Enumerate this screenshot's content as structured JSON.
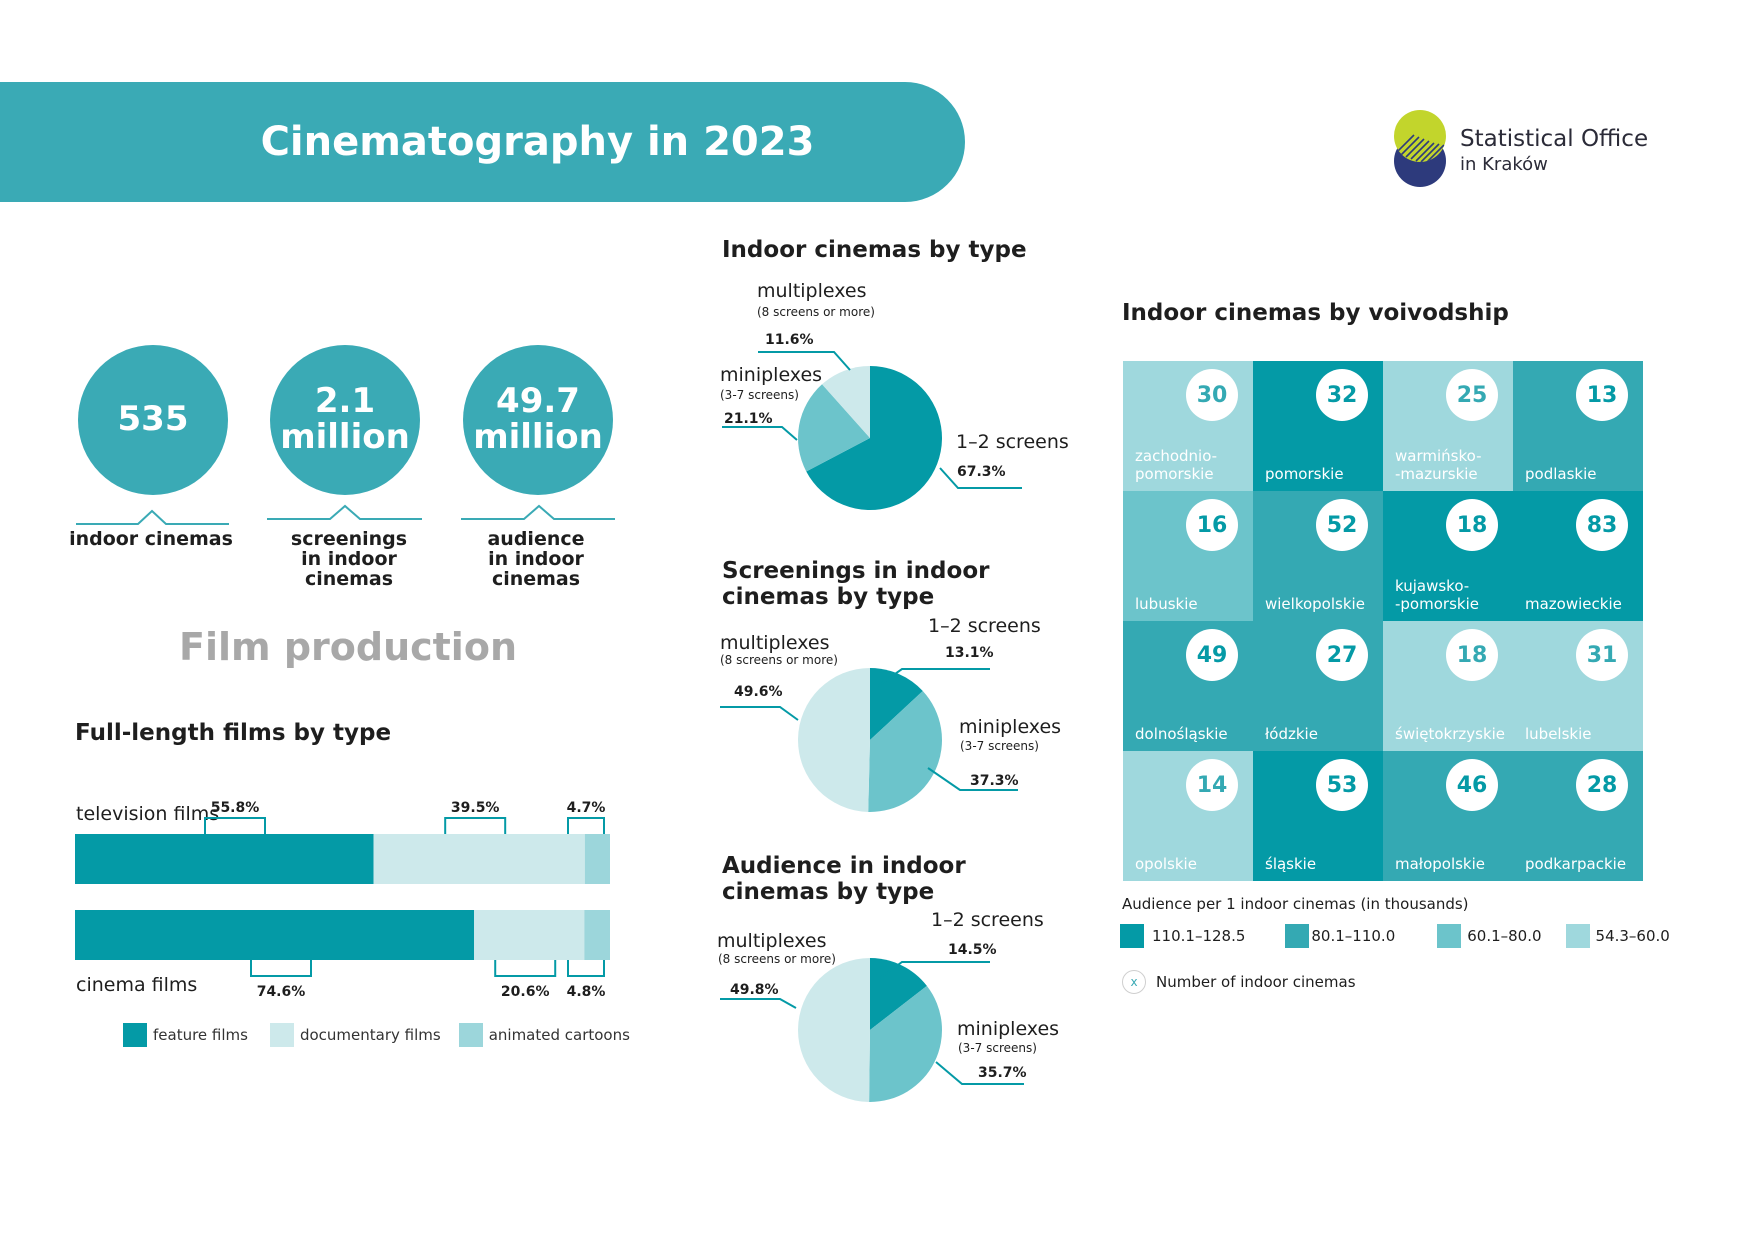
{
  "header": {
    "title": "Cinematography in 2023",
    "logo_line1": "Statistical Office",
    "logo_line2": "in Kraków"
  },
  "colors": {
    "header": "#3aaab5",
    "feature_films": "#049aa6",
    "documentary_films": "#cde9eb",
    "animated_cartoons": "#9cd6db",
    "pie_dark": "#049aa6",
    "pie_mid": "#6cc4cb",
    "pie_light": "#cde9eb",
    "map_110_128": "#049aa6",
    "map_80_110": "#34a9b3",
    "map_60_80": "#6cc4cb",
    "map_54_60": "#9fd8dd"
  },
  "kpis": [
    {
      "value_line1": "535",
      "value_line2": "",
      "label_line1": "indoor cinemas",
      "label_line2": ""
    },
    {
      "value_line1": "2.1",
      "value_line2": "million",
      "label_line1": "screenings",
      "label_line2": "in indoor cinemas"
    },
    {
      "value_line1": "49.7",
      "value_line2": "million",
      "label_line1": "audience",
      "label_line2": "in indoor cinemas"
    }
  ],
  "film_production_title": "Film production",
  "chart_data": [
    {
      "type": "bar",
      "title": "Full-length films by type",
      "stacked": true,
      "orientation": "horizontal",
      "categories": [
        "television films",
        "cinema films"
      ],
      "series": [
        {
          "name": "feature films",
          "values": [
            55.8,
            74.6
          ],
          "labels": [
            "55.8%",
            "74.6%"
          ]
        },
        {
          "name": "documentary films",
          "values": [
            39.5,
            20.6
          ],
          "labels": [
            "39.5%",
            "20.6%"
          ]
        },
        {
          "name": "animated cartoons",
          "values": [
            4.7,
            4.8
          ],
          "labels": [
            "4.7%",
            "4.8%"
          ]
        }
      ],
      "legend": "bottom"
    },
    {
      "type": "pie",
      "title": "Indoor cinemas by type",
      "slices": [
        {
          "name": "1–2 screens",
          "sub": "",
          "value": 67.3,
          "label": "67.3%"
        },
        {
          "name": "miniplexes",
          "sub": "(3-7 screens)",
          "value": 21.1,
          "label": "21.1%"
        },
        {
          "name": "multiplexes",
          "sub": "(8 screens or more)",
          "value": 11.6,
          "label": "11.6%"
        }
      ]
    },
    {
      "type": "pie",
      "title_line1": "Screenings in indoor",
      "title_line2": "cinemas by type",
      "slices": [
        {
          "name": "1–2 screens",
          "sub": "",
          "value": 13.1,
          "label": "13.1%"
        },
        {
          "name": "miniplexes",
          "sub": "(3-7 screens)",
          "value": 37.3,
          "label": "37.3%"
        },
        {
          "name": "multiplexes",
          "sub": "(8 screens or more)",
          "value": 49.6,
          "label": "49.6%"
        }
      ]
    },
    {
      "type": "pie",
      "title_line1": "Audience in indoor",
      "title_line2": "cinemas by type",
      "slices": [
        {
          "name": "1–2 screens",
          "sub": "",
          "value": 14.5,
          "label": "14.5%"
        },
        {
          "name": "miniplexes",
          "sub": "(3-7 screens)",
          "value": 35.7,
          "label": "35.7%"
        },
        {
          "name": "multiplexes",
          "sub": "(8 screens or more)",
          "value": 49.8,
          "label": "49.8%"
        }
      ]
    },
    {
      "type": "heatmap",
      "title": "Indoor cinemas by voivodship",
      "cells": [
        {
          "name": "zachodnio-\npomorskie",
          "count": 30,
          "class": "54.3–60.0"
        },
        {
          "name": "pomorskie",
          "count": 32,
          "class": "110.1–128.5"
        },
        {
          "name": "warmińsko-\n-mazurskie",
          "count": 25,
          "class": "54.3–60.0"
        },
        {
          "name": "podlaskie",
          "count": 13,
          "class": "80.1–110.0"
        },
        {
          "name": "lubuskie",
          "count": 16,
          "class": "60.1–80.0"
        },
        {
          "name": "wielkopolskie",
          "count": 52,
          "class": "80.1–110.0"
        },
        {
          "name": "kujawsko-\n-pomorskie",
          "count": 18,
          "class": "110.1–128.5"
        },
        {
          "name": "mazowieckie",
          "count": 83,
          "class": "110.1–128.5"
        },
        {
          "name": "dolnośląskie",
          "count": 49,
          "class": "80.1–110.0"
        },
        {
          "name": "łódzkie",
          "count": 27,
          "class": "80.1–110.0"
        },
        {
          "name": "świętokrzyskie",
          "count": 18,
          "class": "54.3–60.0"
        },
        {
          "name": "lubelskie",
          "count": 31,
          "class": "54.3–60.0"
        },
        {
          "name": "opolskie",
          "count": 14,
          "class": "54.3–60.0"
        },
        {
          "name": "śląskie",
          "count": 53,
          "class": "110.1–128.5"
        },
        {
          "name": "małopolskie",
          "count": 46,
          "class": "80.1–110.0"
        },
        {
          "name": "podkarpackie",
          "count": 28,
          "class": "80.1–110.0"
        }
      ],
      "legend_title": "Audience per 1 indoor cinemas (in thousands)",
      "legend_classes": [
        "110.1–128.5",
        "80.1–110.0",
        "60.1–80.0",
        "54.3–60.0"
      ],
      "count_legend_symbol": "x",
      "count_legend_text": "Number of indoor cinemas"
    }
  ]
}
